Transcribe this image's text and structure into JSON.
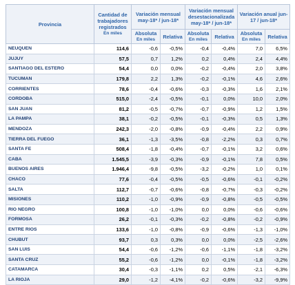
{
  "header": {
    "province": "Provincia",
    "count": {
      "title": "Cantidad de trabajadores registrados",
      "unit": "En miles"
    },
    "monthly": {
      "title": "Variación mensual may-18* / jun-18*",
      "absolute": "Absoluta",
      "absolute_unit": "En miles",
      "relative": "Relativa"
    },
    "seasonal": {
      "title": "Variación mensual desestacionalizada may-18* / jun-18*",
      "absolute": "Absoluta",
      "absolute_unit": "En miles",
      "relative": "Relativa"
    },
    "annual": {
      "title": "Variación anual jun-17 / jun-18*",
      "absolute": "Absoluta",
      "absolute_unit": "En miles",
      "relative": "Relativa"
    }
  },
  "table": {
    "rows": [
      [
        "NEUQUEN",
        "114,6",
        "-0,6",
        "-0,5%",
        "-0,4",
        "-0,4%",
        "7,0",
        "6,5%"
      ],
      [
        "JUJUY",
        "57,5",
        "0,7",
        "1,2%",
        "0,2",
        "0,4%",
        "2,4",
        "4,4%"
      ],
      [
        "SANTIAGO DEL ESTERO",
        "54,4",
        "0,0",
        "0,0%",
        "-0,2",
        "-0,4%",
        "2,0",
        "3,8%"
      ],
      [
        "TUCUMAN",
        "179,8",
        "2,2",
        "1,3%",
        "-0,2",
        "-0,1%",
        "4,6",
        "2,6%"
      ],
      [
        "CORRIENTES",
        "78,6",
        "-0,4",
        "-0,6%",
        "-0,3",
        "-0,3%",
        "1,6",
        "2,1%"
      ],
      [
        "CORDOBA",
        "515,0",
        "-2,4",
        "-0,5%",
        "-0,1",
        "0,0%",
        "10,0",
        "2,0%"
      ],
      [
        "SAN JUAN",
        "81,2",
        "-0,5",
        "-0,7%",
        "-0,7",
        "-0,9%",
        "1,2",
        "1,5%"
      ],
      [
        "LA PAMPA",
        "38,1",
        "-0,2",
        "-0,5%",
        "-0,1",
        "-0,3%",
        "0,5",
        "1,3%"
      ],
      [
        "MENDOZA",
        "242,3",
        "-2,0",
        "-0,8%",
        "-0,9",
        "-0,4%",
        "2,2",
        "0,9%"
      ],
      [
        "TIERRA DEL FUEGO",
        "36,1",
        "-1,3",
        "-3,5%",
        "-0,8",
        "-2,2%",
        "0,3",
        "0,7%"
      ],
      [
        "SANTA FE",
        "508,4",
        "-1,8",
        "-0,4%",
        "-0,7",
        "-0,1%",
        "3,2",
        "0,6%"
      ],
      [
        "CABA",
        "1.545,5",
        "-3,9",
        "-0,3%",
        "-0,9",
        "-0,1%",
        "7,8",
        "0,5%"
      ],
      [
        "BUENOS AIRES",
        "1.946,4",
        "-9,8",
        "-0,5%",
        "-3,2",
        "-0,2%",
        "1,0",
        "0,1%"
      ],
      [
        "CHACO",
        "77,6",
        "-0,4",
        "-0,5%",
        "-0,5",
        "-0,6%",
        "-0,1",
        "-0,2%"
      ],
      [
        "SALTA",
        "112,7",
        "-0,7",
        "-0,6%",
        "-0,8",
        "-0,7%",
        "-0,3",
        "-0,2%"
      ],
      [
        "MISIONES",
        "110,2",
        "-1,0",
        "-0,9%",
        "-0,9",
        "-0,8%",
        "-0,5",
        "-0,5%"
      ],
      [
        "RIO NEGRO",
        "100,8",
        "-1,0",
        "-1,0%",
        "0,0",
        "0,0%",
        "-0,6",
        "-0,6%"
      ],
      [
        "FORMOSA",
        "26,2",
        "-0,1",
        "-0,3%",
        "-0,2",
        "-0,8%",
        "-0,2",
        "-0,9%"
      ],
      [
        "ENTRE RIOS",
        "133,6",
        "-1,0",
        "-0,8%",
        "-0,9",
        "-0,6%",
        "-1,3",
        "-1,0%"
      ],
      [
        "CHUBUT",
        "93,7",
        "0,3",
        "0,3%",
        "0,0",
        "0,0%",
        "-2,5",
        "-2,6%"
      ],
      [
        "SAN LUIS",
        "54,4",
        "-0,6",
        "-1,2%",
        "-0,6",
        "-1,1%",
        "-1,8",
        "-3,2%"
      ],
      [
        "SANTA CRUZ",
        "55,2",
        "-0,6",
        "-1,2%",
        "0,0",
        "-0,1%",
        "-1,8",
        "-3,2%"
      ],
      [
        "CATAMARCA",
        "30,4",
        "-0,3",
        "-1,1%",
        "0,2",
        "0,5%",
        "-2,1",
        "-6,3%"
      ],
      [
        "LA RIOJA",
        "29,0",
        "-1,2",
        "-4,1%",
        "-0,2",
        "-0,6%",
        "-3,2",
        "-9,9%"
      ]
    ]
  }
}
